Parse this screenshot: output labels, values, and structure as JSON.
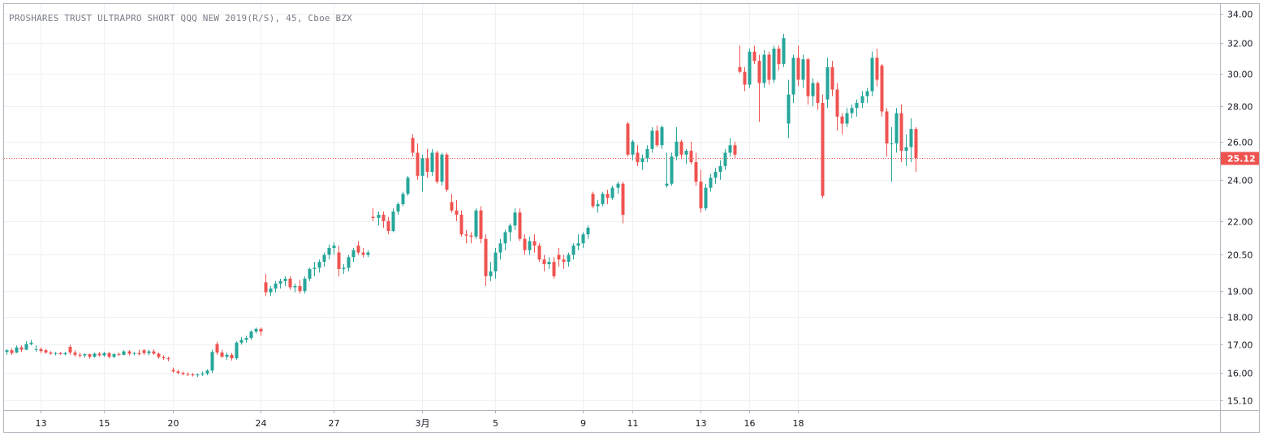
{
  "chart_title": "PROSHARES TRUST ULTRAPRO SHORT QQQ NEW 2019(R/S), 45, Cboe BZX",
  "colors": {
    "up": "#26a69a",
    "down": "#ef5350",
    "grid": "#eef0f3",
    "axis": "#b2b5be",
    "price_line": "#ef5350"
  },
  "chart_data": {
    "type": "candlestick",
    "title": "PROSHARES TRUST ULTRAPRO SHORT QQQ NEW 2019(R/S), 45, Cboe BZX",
    "y_scale": "log",
    "ylim": [
      14.8,
      34.7
    ],
    "y_ticks": [
      {
        "value": 34.0,
        "label": "34.00"
      },
      {
        "value": 32.0,
        "label": "32.00"
      },
      {
        "value": 30.0,
        "label": "30.00"
      },
      {
        "value": 28.0,
        "label": "28.00"
      },
      {
        "value": 26.0,
        "label": "26.00"
      },
      {
        "value": 24.0,
        "label": "24.00"
      },
      {
        "value": 22.0,
        "label": "22.00"
      },
      {
        "value": 20.5,
        "label": "20.50"
      },
      {
        "value": 19.0,
        "label": "19.00"
      },
      {
        "value": 18.0,
        "label": "18.00"
      },
      {
        "value": 17.0,
        "label": "17.00"
      },
      {
        "value": 16.0,
        "label": "16.00"
      },
      {
        "value": 15.1,
        "label": "15.10"
      }
    ],
    "x_ticks": [
      {
        "index": 7,
        "label": "13"
      },
      {
        "index": 20,
        "label": "15"
      },
      {
        "index": 34,
        "label": "20"
      },
      {
        "index": 52,
        "label": "24"
      },
      {
        "index": 67,
        "label": "27"
      },
      {
        "index": 85,
        "label": "3月"
      },
      {
        "index": 100,
        "label": "5"
      },
      {
        "index": 118,
        "label": "9"
      },
      {
        "index": 128,
        "label": "11"
      },
      {
        "index": 142,
        "label": "13"
      },
      {
        "index": 152,
        "label": "16"
      },
      {
        "index": 162,
        "label": "18"
      }
    ],
    "last_price": 25.12,
    "last_price_label": "25.12",
    "grid": true,
    "candles": [
      [
        16.72,
        16.82,
        16.62,
        16.78
      ],
      [
        16.78,
        16.85,
        16.62,
        16.68
      ],
      [
        16.7,
        16.95,
        16.68,
        16.88
      ],
      [
        16.88,
        16.95,
        16.72,
        16.8
      ],
      [
        16.8,
        17.1,
        16.78,
        17.0
      ],
      [
        17.0,
        17.15,
        16.95,
        17.05
      ],
      [
        16.8,
        16.95,
        16.72,
        16.82
      ],
      [
        16.82,
        16.88,
        16.68,
        16.75
      ],
      [
        16.78,
        16.82,
        16.66,
        16.7
      ],
      [
        16.7,
        16.75,
        16.62,
        16.66
      ],
      [
        16.66,
        16.72,
        16.6,
        16.68
      ],
      [
        16.68,
        16.72,
        16.62,
        16.64
      ],
      [
        16.64,
        16.72,
        16.6,
        16.68
      ],
      [
        16.9,
        16.98,
        16.62,
        16.7
      ],
      [
        16.7,
        16.78,
        16.55,
        16.62
      ],
      [
        16.62,
        16.7,
        16.52,
        16.6
      ],
      [
        16.6,
        16.68,
        16.52,
        16.64
      ],
      [
        16.64,
        16.66,
        16.48,
        16.55
      ],
      [
        16.55,
        16.7,
        16.52,
        16.66
      ],
      [
        16.66,
        16.72,
        16.55,
        16.6
      ],
      [
        16.6,
        16.72,
        16.55,
        16.68
      ],
      [
        16.68,
        16.72,
        16.5,
        16.55
      ],
      [
        16.55,
        16.68,
        16.5,
        16.64
      ],
      [
        16.64,
        16.7,
        16.58,
        16.62
      ],
      [
        16.62,
        16.78,
        16.6,
        16.74
      ],
      [
        16.74,
        16.78,
        16.6,
        16.66
      ],
      [
        16.66,
        16.72,
        16.6,
        16.68
      ],
      [
        16.68,
        16.8,
        16.6,
        16.64
      ],
      [
        16.78,
        16.82,
        16.62,
        16.68
      ],
      [
        16.68,
        16.8,
        16.6,
        16.74
      ],
      [
        16.74,
        16.82,
        16.62,
        16.66
      ],
      [
        16.66,
        16.7,
        16.48,
        16.54
      ],
      [
        16.54,
        16.6,
        16.44,
        16.5
      ],
      [
        16.5,
        16.55,
        16.4,
        16.48
      ],
      [
        16.1,
        16.18,
        16.0,
        16.05
      ],
      [
        16.05,
        16.1,
        15.95,
        16.0
      ],
      [
        16.0,
        16.05,
        15.92,
        15.96
      ],
      [
        15.96,
        16.02,
        15.9,
        15.95
      ],
      [
        15.95,
        16.0,
        15.88,
        15.92
      ],
      [
        15.92,
        15.98,
        15.86,
        15.95
      ],
      [
        15.95,
        16.05,
        15.9,
        15.98
      ],
      [
        15.98,
        16.12,
        15.92,
        16.08
      ],
      [
        16.08,
        16.8,
        16.0,
        16.72
      ],
      [
        17.0,
        17.08,
        16.62,
        16.7
      ],
      [
        16.7,
        16.8,
        16.52,
        16.55
      ],
      [
        16.55,
        16.7,
        16.45,
        16.62
      ],
      [
        16.62,
        16.68,
        16.42,
        16.5
      ],
      [
        16.5,
        17.1,
        16.45,
        17.05
      ],
      [
        17.05,
        17.25,
        16.98,
        17.15
      ],
      [
        17.15,
        17.3,
        17.05,
        17.22
      ],
      [
        17.22,
        17.5,
        17.15,
        17.45
      ],
      [
        17.45,
        17.6,
        17.38,
        17.55
      ],
      [
        17.55,
        17.6,
        17.3,
        17.45
      ],
      [
        19.35,
        19.7,
        18.8,
        18.95
      ],
      [
        18.95,
        19.2,
        18.8,
        19.1
      ],
      [
        19.1,
        19.4,
        18.95,
        19.3
      ],
      [
        19.3,
        19.5,
        19.1,
        19.4
      ],
      [
        19.4,
        19.6,
        19.2,
        19.5
      ],
      [
        19.5,
        19.6,
        19.05,
        19.15
      ],
      [
        19.15,
        19.3,
        18.95,
        19.2
      ],
      [
        19.2,
        19.45,
        18.9,
        19.0
      ],
      [
        19.0,
        19.6,
        18.9,
        19.5
      ],
      [
        19.5,
        19.95,
        19.4,
        19.9
      ],
      [
        19.9,
        20.2,
        19.6,
        19.95
      ],
      [
        19.95,
        20.3,
        19.75,
        20.2
      ],
      [
        20.2,
        20.6,
        20.0,
        20.5
      ],
      [
        20.5,
        20.95,
        20.3,
        20.8
      ],
      [
        20.8,
        21.05,
        20.5,
        20.9
      ],
      [
        20.6,
        20.9,
        19.6,
        19.9
      ],
      [
        19.9,
        20.1,
        19.7,
        19.95
      ],
      [
        19.95,
        20.5,
        19.8,
        20.4
      ],
      [
        20.4,
        20.8,
        20.2,
        20.7
      ],
      [
        20.9,
        21.1,
        20.5,
        20.6
      ],
      [
        20.6,
        20.8,
        20.4,
        20.5
      ],
      [
        20.5,
        20.7,
        20.4,
        20.6
      ],
      [
        22.2,
        22.6,
        22.0,
        22.15
      ],
      [
        22.15,
        22.45,
        21.8,
        22.3
      ],
      [
        22.3,
        22.45,
        21.7,
        22.0
      ],
      [
        22.0,
        22.2,
        21.4,
        21.55
      ],
      [
        21.55,
        22.6,
        21.5,
        22.45
      ],
      [
        22.45,
        22.9,
        22.3,
        22.8
      ],
      [
        22.8,
        23.4,
        22.7,
        23.3
      ],
      [
        23.3,
        24.2,
        23.2,
        24.1
      ],
      [
        26.2,
        26.4,
        25.2,
        25.4
      ],
      [
        25.4,
        25.9,
        24.0,
        24.2
      ],
      [
        24.2,
        25.3,
        23.4,
        25.1
      ],
      [
        25.1,
        25.6,
        24.1,
        24.4
      ],
      [
        24.4,
        25.6,
        24.2,
        25.4
      ],
      [
        25.4,
        25.5,
        23.8,
        23.9
      ],
      [
        23.9,
        25.4,
        23.7,
        25.3
      ],
      [
        25.3,
        25.4,
        23.4,
        23.5
      ],
      [
        22.9,
        23.3,
        22.4,
        22.5
      ],
      [
        22.5,
        23.0,
        22.0,
        22.3
      ],
      [
        22.3,
        22.5,
        21.3,
        21.4
      ],
      [
        21.4,
        21.6,
        21.0,
        21.35
      ],
      [
        21.35,
        21.5,
        21.0,
        21.3
      ],
      [
        21.3,
        22.6,
        21.2,
        22.5
      ],
      [
        22.5,
        22.7,
        21.0,
        21.2
      ],
      [
        21.2,
        21.4,
        19.2,
        19.6
      ],
      [
        19.6,
        20.2,
        19.4,
        19.8
      ],
      [
        19.8,
        20.8,
        19.5,
        20.6
      ],
      [
        20.6,
        21.2,
        20.3,
        21.0
      ],
      [
        21.0,
        21.6,
        20.7,
        21.5
      ],
      [
        21.5,
        21.9,
        21.1,
        21.8
      ],
      [
        21.8,
        22.6,
        21.6,
        22.4
      ],
      [
        22.4,
        22.6,
        21.1,
        21.2
      ],
      [
        21.2,
        21.4,
        20.5,
        20.7
      ],
      [
        20.7,
        21.3,
        20.5,
        21.1
      ],
      [
        21.1,
        21.4,
        20.6,
        20.9
      ],
      [
        20.9,
        21.0,
        20.2,
        20.3
      ],
      [
        20.3,
        20.5,
        19.8,
        20.1
      ],
      [
        20.1,
        20.4,
        19.9,
        20.2
      ],
      [
        20.2,
        20.4,
        19.5,
        19.6
      ],
      [
        20.5,
        20.8,
        20.0,
        20.3
      ],
      [
        20.3,
        20.5,
        19.9,
        20.2
      ],
      [
        20.2,
        20.6,
        20.0,
        20.5
      ],
      [
        20.5,
        21.0,
        20.3,
        20.9
      ],
      [
        20.9,
        21.4,
        20.7,
        21.0
      ],
      [
        21.0,
        21.5,
        20.8,
        21.4
      ],
      [
        21.4,
        21.8,
        21.2,
        21.7
      ],
      [
        23.3,
        23.4,
        22.6,
        22.7
      ],
      [
        22.7,
        23.0,
        22.4,
        22.8
      ],
      [
        22.8,
        23.4,
        22.7,
        23.3
      ],
      [
        23.3,
        23.5,
        22.8,
        23.1
      ],
      [
        23.1,
        23.7,
        23.0,
        23.6
      ],
      [
        23.6,
        23.9,
        23.3,
        23.8
      ],
      [
        23.8,
        23.9,
        21.9,
        22.3
      ],
      [
        27.0,
        27.1,
        25.2,
        25.3
      ],
      [
        25.3,
        26.1,
        25.0,
        26.0
      ],
      [
        25.4,
        25.8,
        24.7,
        24.9
      ],
      [
        24.9,
        25.3,
        24.5,
        25.1
      ],
      [
        25.1,
        25.8,
        24.9,
        25.6
      ],
      [
        25.6,
        26.8,
        25.4,
        26.6
      ],
      [
        26.6,
        26.9,
        25.7,
        25.8
      ],
      [
        25.8,
        26.9,
        25.6,
        26.8
      ],
      [
        23.7,
        25.4,
        23.6,
        23.8
      ],
      [
        23.8,
        25.4,
        23.7,
        25.2
      ],
      [
        25.2,
        26.8,
        25.0,
        26.0
      ],
      [
        26.0,
        26.1,
        25.1,
        25.3
      ],
      [
        25.3,
        25.6,
        24.8,
        25.5
      ],
      [
        25.5,
        26.0,
        24.8,
        24.9
      ],
      [
        24.9,
        25.4,
        23.7,
        23.9
      ],
      [
        23.9,
        24.5,
        22.4,
        22.6
      ],
      [
        22.6,
        23.8,
        22.5,
        23.6
      ],
      [
        23.6,
        24.3,
        23.4,
        24.1
      ],
      [
        24.1,
        24.6,
        23.8,
        24.4
      ],
      [
        24.4,
        25.0,
        24.0,
        24.7
      ],
      [
        24.7,
        25.6,
        24.5,
        25.4
      ],
      [
        25.4,
        26.2,
        25.2,
        25.8
      ],
      [
        25.8,
        26.0,
        25.1,
        25.3
      ],
      [
        30.4,
        31.8,
        30.0,
        30.1
      ],
      [
        30.1,
        30.4,
        28.9,
        29.3
      ],
      [
        29.3,
        31.6,
        29.1,
        31.4
      ],
      [
        31.4,
        31.8,
        30.6,
        30.8
      ],
      [
        30.8,
        31.2,
        27.1,
        29.4
      ],
      [
        29.4,
        31.5,
        29.1,
        31.2
      ],
      [
        31.2,
        31.4,
        29.3,
        29.6
      ],
      [
        29.6,
        31.8,
        29.4,
        31.6
      ],
      [
        31.6,
        31.8,
        30.2,
        30.6
      ],
      [
        30.6,
        32.6,
        30.4,
        32.3
      ],
      [
        27.0,
        29.6,
        26.2,
        28.7
      ],
      [
        28.7,
        31.2,
        28.2,
        31.0
      ],
      [
        31.0,
        31.8,
        29.2,
        29.6
      ],
      [
        29.6,
        31.2,
        29.1,
        30.9
      ],
      [
        30.9,
        31.0,
        28.1,
        28.6
      ],
      [
        28.6,
        29.7,
        28.0,
        29.4
      ],
      [
        29.4,
        29.5,
        27.8,
        28.2
      ],
      [
        28.2,
        28.7,
        23.1,
        23.2
      ],
      [
        28.4,
        31.0,
        27.9,
        30.4
      ],
      [
        30.4,
        30.8,
        28.6,
        29.0
      ],
      [
        29.0,
        29.4,
        26.6,
        27.4
      ],
      [
        27.4,
        27.6,
        26.4,
        27.0
      ],
      [
        27.0,
        27.9,
        26.8,
        27.6
      ],
      [
        27.6,
        28.1,
        27.3,
        27.9
      ],
      [
        27.9,
        28.4,
        27.4,
        28.2
      ],
      [
        28.2,
        28.9,
        27.9,
        28.6
      ],
      [
        28.6,
        29.1,
        28.2,
        28.9
      ],
      [
        28.9,
        31.4,
        28.6,
        31.0
      ],
      [
        31.0,
        31.6,
        29.2,
        29.6
      ],
      [
        30.5,
        30.6,
        27.4,
        27.7
      ],
      [
        27.7,
        27.9,
        25.2,
        25.9
      ],
      [
        25.9,
        26.8,
        23.9,
        25.9
      ],
      [
        25.9,
        27.9,
        25.4,
        27.6
      ],
      [
        27.6,
        28.1,
        24.9,
        25.5
      ],
      [
        25.5,
        26.4,
        24.7,
        25.7
      ],
      [
        25.7,
        27.3,
        24.9,
        26.7
      ],
      [
        26.7,
        26.8,
        24.4,
        25.12
      ]
    ]
  }
}
